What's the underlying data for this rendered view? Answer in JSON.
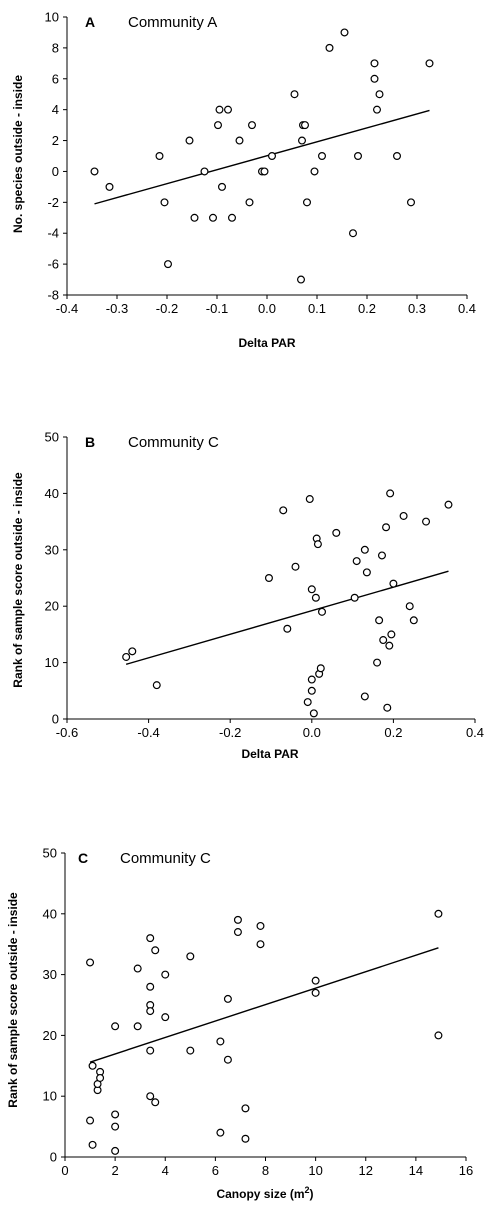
{
  "chart_data": [
    {
      "type": "scatter",
      "panel": "A",
      "title": "Community A",
      "xlabel": "Delta PAR",
      "ylabel": "No. species outside - inside",
      "xlim": [
        -0.4,
        0.4
      ],
      "ylim": [
        -8,
        10
      ],
      "xticks": [
        -0.4,
        -0.3,
        -0.2,
        -0.1,
        0.0,
        0.1,
        0.2,
        0.3,
        0.4
      ],
      "xtick_labels": [
        "-0.4",
        "-0.3",
        "-0.2",
        "-0.1",
        "0.0",
        "0.1",
        "0.2",
        "0.3",
        "0.4"
      ],
      "yticks": [
        -8,
        -6,
        -4,
        -2,
        0,
        2,
        4,
        6,
        8,
        10
      ],
      "ytick_labels": [
        "-8",
        "-6",
        "-4",
        "-2",
        "0",
        "2",
        "4",
        "6",
        "8",
        "10"
      ],
      "grid": false,
      "points": [
        [
          -0.345,
          0
        ],
        [
          -0.315,
          -1
        ],
        [
          -0.215,
          1
        ],
        [
          -0.205,
          -2
        ],
        [
          -0.198,
          -6
        ],
        [
          -0.155,
          2
        ],
        [
          -0.145,
          -3
        ],
        [
          -0.125,
          0
        ],
        [
          -0.108,
          -3
        ],
        [
          -0.098,
          3
        ],
        [
          -0.095,
          4
        ],
        [
          -0.09,
          -1
        ],
        [
          -0.078,
          4
        ],
        [
          -0.07,
          -3
        ],
        [
          -0.055,
          2
        ],
        [
          -0.035,
          -2
        ],
        [
          -0.03,
          3
        ],
        [
          -0.01,
          0
        ],
        [
          -0.005,
          0
        ],
        [
          0.01,
          1
        ],
        [
          0.055,
          5
        ],
        [
          0.068,
          -7
        ],
        [
          0.07,
          2
        ],
        [
          0.072,
          3
        ],
        [
          0.076,
          3
        ],
        [
          0.08,
          -2
        ],
        [
          0.095,
          0
        ],
        [
          0.11,
          1
        ],
        [
          0.125,
          8
        ],
        [
          0.155,
          9
        ],
        [
          0.172,
          -4
        ],
        [
          0.182,
          1
        ],
        [
          0.215,
          7
        ],
        [
          0.215,
          6
        ],
        [
          0.22,
          4
        ],
        [
          0.225,
          5
        ],
        [
          0.26,
          1
        ],
        [
          0.288,
          -2
        ],
        [
          0.325,
          7
        ]
      ],
      "trendline": [
        [
          -0.345,
          -2.1
        ],
        [
          0.325,
          3.95
        ]
      ]
    },
    {
      "type": "scatter",
      "panel": "B",
      "title": "Community C",
      "xlabel": "Delta PAR",
      "ylabel": "Rank of sample score outside - inside",
      "xlim": [
        -0.6,
        0.4
      ],
      "ylim": [
        0,
        50
      ],
      "xticks": [
        -0.6,
        -0.4,
        -0.2,
        0.0,
        0.2,
        0.4
      ],
      "xtick_labels": [
        "-0.6",
        "-0.4",
        "-0.2",
        "0.0",
        "0.2",
        "0.4"
      ],
      "yticks": [
        0,
        10,
        20,
        30,
        40,
        50
      ],
      "ytick_labels": [
        "0",
        "10",
        "20",
        "30",
        "40",
        "50"
      ],
      "grid": false,
      "points": [
        [
          -0.455,
          11
        ],
        [
          -0.44,
          12
        ],
        [
          -0.38,
          6
        ],
        [
          -0.105,
          25
        ],
        [
          -0.07,
          37
        ],
        [
          -0.06,
          16
        ],
        [
          -0.04,
          27
        ],
        [
          -0.01,
          3
        ],
        [
          -0.005,
          39
        ],
        [
          0.0,
          7
        ],
        [
          0.0,
          23
        ],
        [
          0.0,
          5
        ],
        [
          0.005,
          1
        ],
        [
          0.01,
          21.5
        ],
        [
          0.012,
          32
        ],
        [
          0.015,
          31
        ],
        [
          0.018,
          8
        ],
        [
          0.022,
          9
        ],
        [
          0.025,
          19
        ],
        [
          0.06,
          33
        ],
        [
          0.105,
          21.5
        ],
        [
          0.11,
          28
        ],
        [
          0.13,
          4
        ],
        [
          0.13,
          30
        ],
        [
          0.135,
          26
        ],
        [
          0.16,
          10
        ],
        [
          0.165,
          17.5
        ],
        [
          0.172,
          29
        ],
        [
          0.175,
          14
        ],
        [
          0.182,
          34
        ],
        [
          0.185,
          2
        ],
        [
          0.19,
          13
        ],
        [
          0.192,
          40
        ],
        [
          0.195,
          15
        ],
        [
          0.2,
          24
        ],
        [
          0.225,
          36
        ],
        [
          0.24,
          20
        ],
        [
          0.25,
          17.5
        ],
        [
          0.28,
          35
        ],
        [
          0.335,
          38
        ]
      ],
      "trendline": [
        [
          -0.455,
          9.7
        ],
        [
          0.335,
          26.2
        ]
      ]
    },
    {
      "type": "scatter",
      "panel": "C",
      "title": "Community C",
      "xlabel": "Canopy size (m",
      "xlabel_superscript": "2",
      "xlabel_suffix": ")",
      "ylabel": "Rank of sample score outside - inside",
      "xlim": [
        0,
        16
      ],
      "ylim": [
        0,
        50
      ],
      "xticks": [
        0,
        2,
        4,
        6,
        8,
        10,
        12,
        14,
        16
      ],
      "xtick_labels": [
        "0",
        "2",
        "4",
        "6",
        "8",
        "10",
        "12",
        "14",
        "16"
      ],
      "yticks": [
        0,
        10,
        20,
        30,
        40,
        50
      ],
      "ytick_labels": [
        "0",
        "10",
        "20",
        "30",
        "40",
        "50"
      ],
      "grid": false,
      "points": [
        [
          1.0,
          32
        ],
        [
          1.0,
          6
        ],
        [
          1.1,
          15
        ],
        [
          1.1,
          2
        ],
        [
          1.3,
          11
        ],
        [
          1.3,
          12
        ],
        [
          1.4,
          14
        ],
        [
          1.4,
          13
        ],
        [
          2.0,
          21.5
        ],
        [
          2.0,
          7
        ],
        [
          2.0,
          5
        ],
        [
          2.0,
          1
        ],
        [
          2.9,
          31
        ],
        [
          2.9,
          21.5
        ],
        [
          3.4,
          36
        ],
        [
          3.4,
          28
        ],
        [
          3.4,
          25
        ],
        [
          3.4,
          24
        ],
        [
          3.4,
          17.5
        ],
        [
          3.4,
          10
        ],
        [
          3.6,
          34
        ],
        [
          3.6,
          9
        ],
        [
          4.0,
          30
        ],
        [
          4.0,
          23
        ],
        [
          5.0,
          33
        ],
        [
          5.0,
          17.5
        ],
        [
          6.2,
          19
        ],
        [
          6.2,
          4
        ],
        [
          6.5,
          26
        ],
        [
          6.5,
          16
        ],
        [
          6.9,
          39
        ],
        [
          6.9,
          37
        ],
        [
          7.2,
          8
        ],
        [
          7.2,
          3
        ],
        [
          7.8,
          38
        ],
        [
          7.8,
          35
        ],
        [
          10.0,
          29
        ],
        [
          10.0,
          27
        ],
        [
          14.9,
          40
        ],
        [
          14.9,
          20
        ]
      ],
      "trendline": [
        [
          1.0,
          15.6
        ],
        [
          14.9,
          34.4
        ]
      ]
    }
  ]
}
